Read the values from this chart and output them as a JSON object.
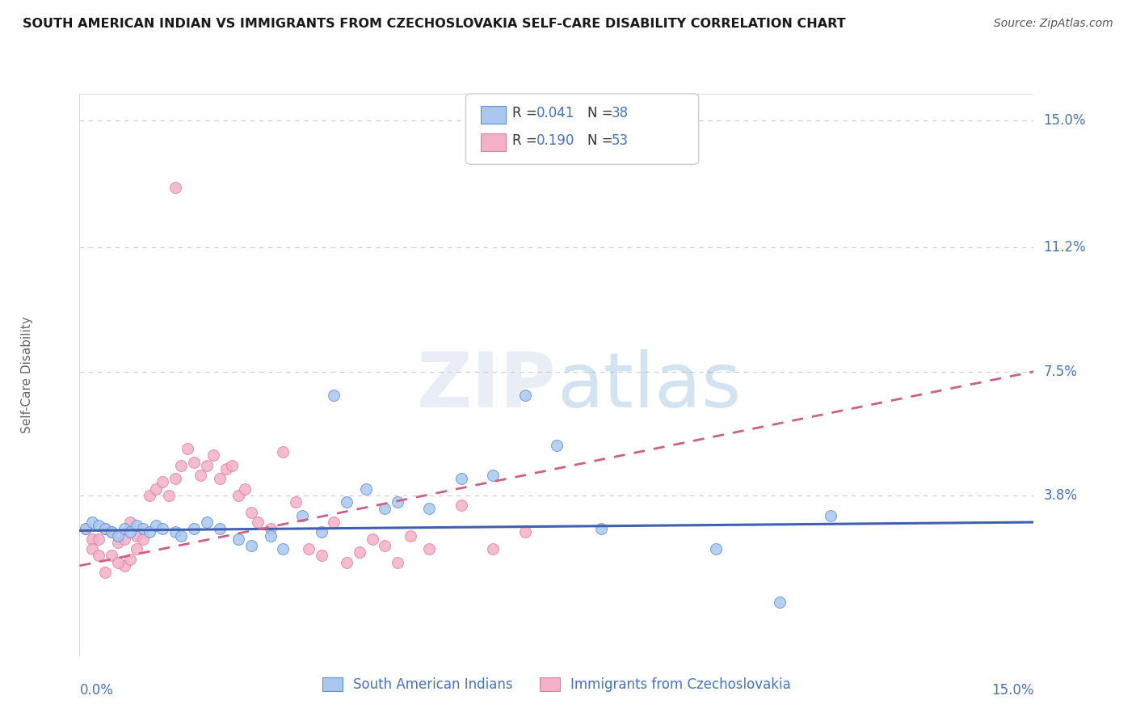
{
  "title": "SOUTH AMERICAN INDIAN VS IMMIGRANTS FROM CZECHOSLOVAKIA SELF-CARE DISABILITY CORRELATION CHART",
  "source": "Source: ZipAtlas.com",
  "ylabel": "Self-Care Disability",
  "ytick_labels": [
    "15.0%",
    "11.2%",
    "7.5%",
    "3.8%"
  ],
  "ytick_values": [
    0.15,
    0.112,
    0.075,
    0.038
  ],
  "xlim": [
    0.0,
    0.15
  ],
  "ylim": [
    -0.01,
    0.158
  ],
  "legend1_label": "South American Indians",
  "legend2_label": "Immigrants from Czechoslovakia",
  "r1": "0.041",
  "n1": "38",
  "r2": "0.190",
  "n2": "53",
  "color_blue": "#a8c8f0",
  "color_pink": "#f4b0c8",
  "color_blue_line": "#4060b0",
  "color_pink_line": "#d06080",
  "color_blue_edge": "#6090d0",
  "color_pink_edge": "#e080a0",
  "axis_label_color": "#4472c4",
  "text_color_dark": "#333333",
  "background_color": "#ffffff",
  "grid_color": "#cccccc",
  "blue_points": [
    [
      0.001,
      0.028
    ],
    [
      0.002,
      0.03
    ],
    [
      0.003,
      0.029
    ],
    [
      0.004,
      0.028
    ],
    [
      0.005,
      0.027
    ],
    [
      0.006,
      0.026
    ],
    [
      0.007,
      0.028
    ],
    [
      0.008,
      0.027
    ],
    [
      0.009,
      0.029
    ],
    [
      0.01,
      0.028
    ],
    [
      0.011,
      0.027
    ],
    [
      0.012,
      0.029
    ],
    [
      0.013,
      0.028
    ],
    [
      0.015,
      0.027
    ],
    [
      0.016,
      0.026
    ],
    [
      0.018,
      0.028
    ],
    [
      0.02,
      0.03
    ],
    [
      0.022,
      0.028
    ],
    [
      0.025,
      0.025
    ],
    [
      0.027,
      0.023
    ],
    [
      0.03,
      0.026
    ],
    [
      0.032,
      0.022
    ],
    [
      0.035,
      0.032
    ],
    [
      0.038,
      0.027
    ],
    [
      0.04,
      0.068
    ],
    [
      0.042,
      0.036
    ],
    [
      0.045,
      0.04
    ],
    [
      0.048,
      0.034
    ],
    [
      0.05,
      0.036
    ],
    [
      0.055,
      0.034
    ],
    [
      0.06,
      0.043
    ],
    [
      0.065,
      0.044
    ],
    [
      0.07,
      0.068
    ],
    [
      0.075,
      0.053
    ],
    [
      0.082,
      0.028
    ],
    [
      0.1,
      0.022
    ],
    [
      0.11,
      0.006
    ],
    [
      0.118,
      0.032
    ]
  ],
  "pink_points": [
    [
      0.001,
      0.028
    ],
    [
      0.002,
      0.025
    ],
    [
      0.003,
      0.025
    ],
    [
      0.004,
      0.028
    ],
    [
      0.005,
      0.027
    ],
    [
      0.006,
      0.024
    ],
    [
      0.007,
      0.025
    ],
    [
      0.008,
      0.03
    ],
    [
      0.009,
      0.026
    ],
    [
      0.01,
      0.025
    ],
    [
      0.011,
      0.038
    ],
    [
      0.012,
      0.04
    ],
    [
      0.013,
      0.042
    ],
    [
      0.014,
      0.038
    ],
    [
      0.015,
      0.043
    ],
    [
      0.015,
      0.13
    ],
    [
      0.016,
      0.047
    ],
    [
      0.017,
      0.052
    ],
    [
      0.018,
      0.048
    ],
    [
      0.019,
      0.044
    ],
    [
      0.02,
      0.047
    ],
    [
      0.021,
      0.05
    ],
    [
      0.022,
      0.043
    ],
    [
      0.023,
      0.046
    ],
    [
      0.024,
      0.047
    ],
    [
      0.025,
      0.038
    ],
    [
      0.026,
      0.04
    ],
    [
      0.027,
      0.033
    ],
    [
      0.028,
      0.03
    ],
    [
      0.03,
      0.028
    ],
    [
      0.032,
      0.051
    ],
    [
      0.034,
      0.036
    ],
    [
      0.036,
      0.022
    ],
    [
      0.038,
      0.02
    ],
    [
      0.04,
      0.03
    ],
    [
      0.042,
      0.018
    ],
    [
      0.044,
      0.021
    ],
    [
      0.046,
      0.025
    ],
    [
      0.048,
      0.023
    ],
    [
      0.05,
      0.018
    ],
    [
      0.052,
      0.026
    ],
    [
      0.055,
      0.022
    ],
    [
      0.06,
      0.035
    ],
    [
      0.065,
      0.022
    ],
    [
      0.07,
      0.027
    ],
    [
      0.002,
      0.022
    ],
    [
      0.003,
      0.02
    ],
    [
      0.005,
      0.02
    ],
    [
      0.007,
      0.017
    ],
    [
      0.009,
      0.022
    ],
    [
      0.004,
      0.015
    ],
    [
      0.006,
      0.018
    ],
    [
      0.008,
      0.019
    ]
  ],
  "blue_line_x": [
    0.0,
    0.15
  ],
  "blue_line_y": [
    0.0275,
    0.03
  ],
  "pink_line_x": [
    0.0,
    0.15
  ],
  "pink_line_y": [
    0.017,
    0.075
  ]
}
